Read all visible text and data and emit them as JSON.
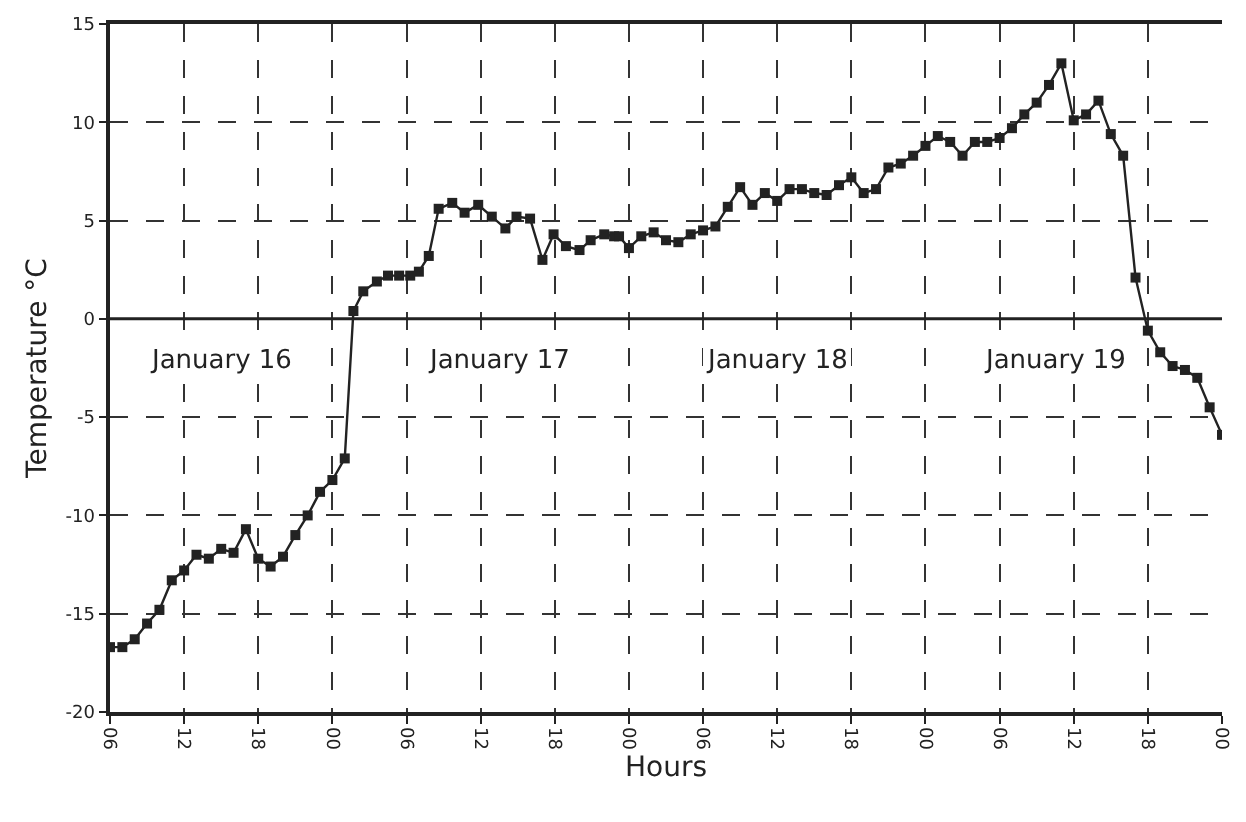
{
  "chart_data": {
    "type": "line",
    "xlabel": "Hours",
    "ylabel": "Temperature °C",
    "x": [
      6,
      7,
      8,
      9,
      10,
      11,
      12,
      13,
      14,
      15,
      16,
      17,
      18,
      19,
      20,
      21,
      22,
      23,
      24,
      25,
      25.7,
      26.5,
      27.6,
      28.5,
      29.4,
      30.3,
      31,
      31.8,
      32.6,
      33.7,
      34.7,
      35.8,
      36.9,
      38,
      38.9,
      40,
      41,
      41.9,
      42.9,
      44,
      44.9,
      46,
      46.8,
      47.2,
      48,
      49,
      50,
      51,
      52,
      53,
      54,
      55,
      56,
      57,
      58,
      59,
      60,
      61,
      62,
      63,
      64,
      65,
      66,
      67,
      68,
      69,
      70,
      71,
      72,
      73,
      74,
      75,
      76,
      77,
      78,
      79,
      80,
      81,
      82,
      83,
      84,
      85,
      86,
      87,
      88,
      89,
      90,
      91,
      92,
      93,
      94,
      95,
      96
    ],
    "series": [
      {
        "color": "#222222",
        "values": [
          -16.7,
          -16.7,
          -16.3,
          -15.5,
          -14.8,
          -13.3,
          -12.8,
          -12.0,
          -12.2,
          -11.7,
          -11.9,
          -10.7,
          -12.2,
          -12.6,
          -12.1,
          -11.0,
          -10.0,
          -8.8,
          -8.2,
          -7.1,
          0.4,
          1.4,
          1.9,
          2.2,
          2.2,
          2.2,
          2.4,
          3.2,
          5.6,
          5.9,
          5.4,
          5.8,
          5.2,
          4.6,
          5.2,
          5.1,
          3.0,
          4.3,
          3.7,
          3.5,
          4.0,
          4.3,
          4.2,
          4.2,
          3.6,
          4.2,
          4.4,
          4.0,
          3.9,
          4.3,
          4.5,
          4.7,
          5.7,
          6.7,
          5.8,
          6.4,
          6.0,
          6.6,
          6.6,
          6.4,
          6.3,
          6.8,
          7.2,
          6.4,
          6.6,
          7.7,
          7.9,
          8.3,
          8.8,
          9.3,
          9.0,
          8.3,
          9.0,
          9.0,
          9.2,
          9.7,
          10.4,
          11.0,
          11.9,
          13.0,
          10.1,
          10.4,
          11.1,
          9.4,
          8.3,
          2.1,
          -0.6,
          -1.7,
          -2.4,
          -2.6,
          -3.0,
          -4.5,
          -5.9
        ]
      }
    ],
    "xlim": [
      6,
      96
    ],
    "xticks": [
      {
        "value": 6,
        "label": "06"
      },
      {
        "value": 12,
        "label": "12"
      },
      {
        "value": 18,
        "label": "18"
      },
      {
        "value": 24,
        "label": "00"
      },
      {
        "value": 30,
        "label": "06"
      },
      {
        "value": 36,
        "label": "12"
      },
      {
        "value": 42,
        "label": "18"
      },
      {
        "value": 48,
        "label": "00"
      },
      {
        "value": 54,
        "label": "06"
      },
      {
        "value": 60,
        "label": "12"
      },
      {
        "value": 66,
        "label": "18"
      },
      {
        "value": 72,
        "label": "00"
      },
      {
        "value": 78,
        "label": "06"
      },
      {
        "value": 84,
        "label": "12"
      },
      {
        "value": 90,
        "label": "18"
      },
      {
        "value": 96,
        "label": "00"
      }
    ],
    "ylim": [
      -20,
      15
    ],
    "yticks": [
      -20,
      -15,
      -10,
      -5,
      0,
      5,
      10,
      15
    ],
    "grid": true,
    "marker": "square",
    "line_style": "solid",
    "ref_lines": [
      {
        "axis": "y",
        "value": 0,
        "color": "#222222",
        "line_style": "solid"
      }
    ],
    "annotations": [
      "January 16",
      "January 17",
      "January 18",
      "January 19"
    ]
  }
}
